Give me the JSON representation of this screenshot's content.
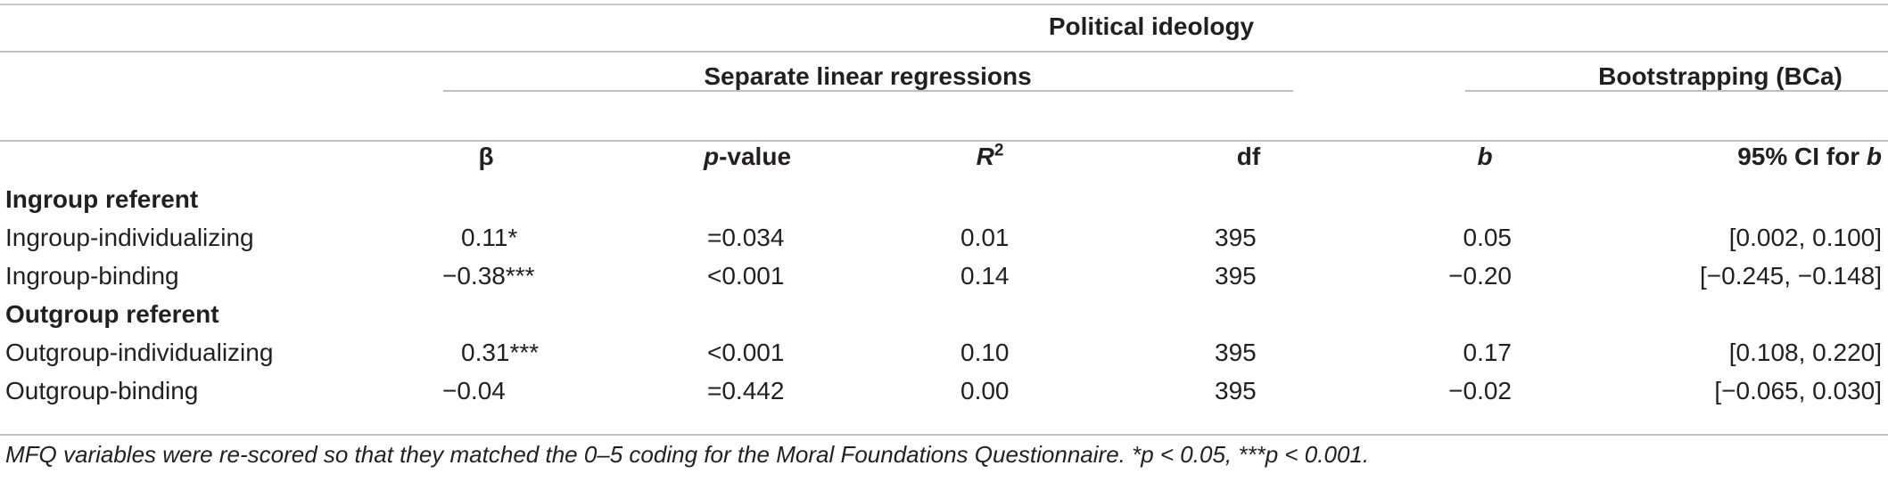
{
  "header": {
    "group_title": "Political ideology",
    "left_group": "Separate linear regressions",
    "right_group": "Bootstrapping (BCa)",
    "col_beta": "β",
    "col_p_italic": "p",
    "col_p_rest": "-value",
    "col_r_base": "R",
    "col_r_sup": "2",
    "col_df": "df",
    "col_b": "b",
    "col_ci_prefix": "95% CI for ",
    "col_ci_var": "b"
  },
  "sections": [
    {
      "title": "Ingroup referent",
      "rows": [
        {
          "label": "Ingroup-individualizing",
          "beta": "0.11*",
          "p": "=0.034",
          "r2": "0.01",
          "df": "395",
          "b": "0.05",
          "ci": "[0.002, 0.100]"
        },
        {
          "label": "Ingroup-binding",
          "beta": "−0.38***",
          "p": "<0.001",
          "r2": "0.14",
          "df": "395",
          "b": "−0.20",
          "ci": "[−0.245, −0.148]"
        }
      ]
    },
    {
      "title": "Outgroup referent",
      "rows": [
        {
          "label": "Outgroup-individualizing",
          "beta": "0.31***",
          "p": "<0.001",
          "r2": "0.10",
          "df": "395",
          "b": "0.17",
          "ci": "[0.108, 0.220]"
        },
        {
          "label": "Outgroup-binding",
          "beta": "−0.04",
          "p": "=0.442",
          "r2": "0.00",
          "df": "395",
          "b": "−0.02",
          "ci": "[−0.065, 0.030]"
        }
      ]
    }
  ],
  "footnote": "MFQ variables were re-scored so that they matched the 0–5 coding for the Moral Foundations Questionnaire. *p < 0.05, ***p < 0.001."
}
